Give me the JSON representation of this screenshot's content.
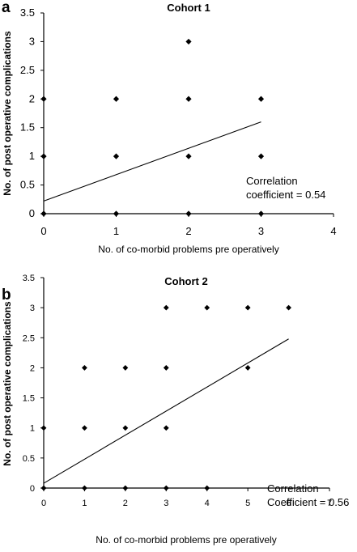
{
  "chart_data": [
    {
      "type": "scatter",
      "panel_letter": "a",
      "title": "Cohort 1",
      "xlabel": "No. of co-morbid problems pre operatively",
      "ylabel": "No. of post operative complications",
      "xlim": [
        0,
        4
      ],
      "ylim": [
        0,
        3.5
      ],
      "x_ticks": [
        "0",
        "1",
        "2",
        "3",
        "4"
      ],
      "y_ticks": [
        "0",
        "0.5",
        "1",
        "1.5",
        "2",
        "2.5",
        "3",
        "3.5"
      ],
      "points": [
        {
          "x": 0,
          "y": 0
        },
        {
          "x": 0,
          "y": 1
        },
        {
          "x": 0,
          "y": 2
        },
        {
          "x": 1,
          "y": 0
        },
        {
          "x": 1,
          "y": 1
        },
        {
          "x": 1,
          "y": 2
        },
        {
          "x": 2,
          "y": 0
        },
        {
          "x": 2,
          "y": 1
        },
        {
          "x": 2,
          "y": 2
        },
        {
          "x": 2,
          "y": 3
        },
        {
          "x": 3,
          "y": 0
        },
        {
          "x": 3,
          "y": 1
        },
        {
          "x": 3,
          "y": 2
        }
      ],
      "trendline": {
        "x": [
          0,
          3
        ],
        "y": [
          0.22,
          1.6
        ]
      },
      "annotation": [
        "Correlation",
        "coefficient = 0.54"
      ],
      "grid": false,
      "legend": "none"
    },
    {
      "type": "scatter",
      "panel_letter": "b",
      "title": "Cohort 2",
      "xlabel": "No. of co-morbid problems pre operatively",
      "ylabel": "No. of post operative complications",
      "xlim": [
        0,
        7
      ],
      "ylim": [
        0,
        3.5
      ],
      "x_ticks": [
        "0",
        "1",
        "2",
        "3",
        "4",
        "5",
        "6",
        "7"
      ],
      "y_ticks": [
        "0",
        "0.5",
        "1",
        "1.5",
        "2",
        "2.5",
        "3",
        "3.5"
      ],
      "points": [
        {
          "x": 0,
          "y": 0
        },
        {
          "x": 0,
          "y": 1
        },
        {
          "x": 1,
          "y": 0
        },
        {
          "x": 1,
          "y": 1
        },
        {
          "x": 1,
          "y": 2
        },
        {
          "x": 2,
          "y": 0
        },
        {
          "x": 2,
          "y": 1
        },
        {
          "x": 2,
          "y": 2
        },
        {
          "x": 3,
          "y": 0
        },
        {
          "x": 3,
          "y": 1
        },
        {
          "x": 3,
          "y": 2
        },
        {
          "x": 3,
          "y": 3
        },
        {
          "x": 4,
          "y": 0
        },
        {
          "x": 4,
          "y": 3
        },
        {
          "x": 5,
          "y": 2
        },
        {
          "x": 5,
          "y": 3
        },
        {
          "x": 6,
          "y": 3
        }
      ],
      "trendline": {
        "x": [
          0,
          6
        ],
        "y": [
          0.08,
          2.48
        ]
      },
      "annotation": [
        "Correlation",
        "Coefficient = 0.56"
      ],
      "grid": false,
      "legend": "none"
    }
  ]
}
